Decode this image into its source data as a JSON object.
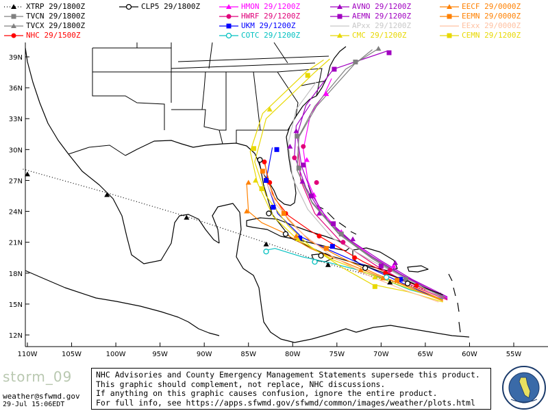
{
  "legend": [
    {
      "id": "xtrp",
      "label": "XTRP  29/1800Z",
      "color": "#000000",
      "marker": "triangle",
      "dash": true
    },
    {
      "id": "tvcn",
      "label": "TVCN  29/1800Z",
      "color": "#808080",
      "marker": "square"
    },
    {
      "id": "tvcx",
      "label": "TVCX  29/1800Z",
      "color": "#808080",
      "marker": "triangle"
    },
    {
      "id": "nhc",
      "label": "NHC  29/1500Z",
      "color": "#ff0000",
      "marker": "circle"
    },
    {
      "id": "clp5",
      "label": "CLP5  29/1800Z",
      "color": "#000000",
      "marker": "circle-open"
    },
    {
      "id": "hmon",
      "label": "HMON  29/1200Z",
      "color": "#ff00ff",
      "marker": "triangle"
    },
    {
      "id": "hwrf",
      "label": "HWRF  29/1200Z",
      "color": "#e0007a",
      "marker": "circle"
    },
    {
      "id": "ukm",
      "label": "UKM  29/1200Z",
      "color": "#0000ff",
      "marker": "square"
    },
    {
      "id": "cotc",
      "label": "COTC  29/1200Z",
      "color": "#00c0c0",
      "marker": "circle-open"
    },
    {
      "id": "avno",
      "label": "AVNO  29/1200Z",
      "color": "#a000c0",
      "marker": "triangle"
    },
    {
      "id": "aemn",
      "label": "AEMN  29/1200Z",
      "color": "#a000c0",
      "marker": "square"
    },
    {
      "id": "apxx",
      "label": "APxx  29/1200Z",
      "color": "#c8c8c8",
      "marker": "line"
    },
    {
      "id": "cmc",
      "label": "CMC  29/1200Z",
      "color": "#e8d800",
      "marker": "triangle"
    },
    {
      "id": "eecf",
      "label": "EECF  29/0000Z",
      "color": "#ff8000",
      "marker": "triangle"
    },
    {
      "id": "eemn",
      "label": "EEMN  29/0000Z",
      "color": "#ff8000",
      "marker": "square"
    },
    {
      "id": "eexx",
      "label": "EExx  29/0000Z",
      "color": "#ffc0a0",
      "marker": "line"
    },
    {
      "id": "cemn",
      "label": "CEMN  29/1200Z",
      "color": "#e8d800",
      "marker": "square"
    }
  ],
  "axes": {
    "lat_labels": [
      "39N",
      "36N",
      "33N",
      "30N",
      "27N",
      "24N",
      "21N",
      "18N",
      "15N",
      "12N"
    ],
    "lat_values": [
      39,
      36,
      33,
      30,
      27,
      24,
      21,
      18,
      15,
      12
    ],
    "lon_labels": [
      "110W",
      "105W",
      "100W",
      "95W",
      "90W",
      "85W",
      "80W",
      "75W",
      "70W",
      "65W",
      "60W",
      "55W"
    ],
    "lon_values": [
      -110,
      -105,
      -100,
      -95,
      -90,
      -85,
      -80,
      -75,
      -70,
      -65,
      -60,
      -55
    ]
  },
  "tracks": [
    {
      "id": "xtrp",
      "color": "#000000",
      "dash": true,
      "pts": [
        [
          -110.5,
          28.1
        ],
        [
          -101,
          25.8
        ],
        [
          -92,
          23.5
        ],
        [
          -83.5,
          21.1
        ],
        [
          -76,
          18.9
        ],
        [
          -69,
          17.2
        ],
        [
          -63,
          16
        ]
      ],
      "marks": [
        [
          -110,
          27.6
        ],
        [
          -101,
          25.6
        ],
        [
          -92,
          23.4
        ],
        [
          -83,
          20.8
        ],
        [
          -76,
          18.8
        ],
        [
          -69,
          17.1
        ]
      ]
    },
    {
      "id": "nhc",
      "color": "#ff0000",
      "pts": [
        [
          -62.5,
          15.5
        ],
        [
          -66,
          16.8
        ],
        [
          -69,
          17.9
        ],
        [
          -72,
          19.1
        ],
        [
          -75,
          20.6
        ],
        [
          -78,
          22.1
        ],
        [
          -80.5,
          23.6
        ],
        [
          -82,
          25.2
        ],
        [
          -82.8,
          27
        ],
        [
          -83.2,
          29
        ]
      ],
      "marks": [
        [
          -66,
          16.8
        ],
        [
          -69.5,
          18
        ],
        [
          -73,
          19.5
        ],
        [
          -77,
          21.6
        ],
        [
          -80.8,
          23.8
        ],
        [
          -82.6,
          26.8
        ],
        [
          -83.2,
          28.8
        ]
      ]
    },
    {
      "id": "hmon",
      "color": "#ff00ff",
      "pts": [
        [
          -62.5,
          15.6
        ],
        [
          -67,
          17.5
        ],
        [
          -71,
          19.6
        ],
        [
          -74.5,
          21.8
        ],
        [
          -77,
          24.3
        ],
        [
          -78.3,
          27
        ],
        [
          -78.8,
          30
        ],
        [
          -78,
          33.4
        ],
        [
          -76.4,
          35.4
        ],
        [
          -75.6,
          36.9
        ]
      ],
      "marks": [
        [
          -68.6,
          18.7
        ],
        [
          -74.5,
          22
        ],
        [
          -77.6,
          25.6
        ],
        [
          -78.4,
          29
        ],
        [
          -76.2,
          35.4
        ]
      ]
    },
    {
      "id": "hwrf",
      "color": "#e0007a",
      "pts": [
        [
          -62.5,
          15.4
        ],
        [
          -66.5,
          16.8
        ],
        [
          -70.5,
          18.7
        ],
        [
          -74.5,
          21
        ],
        [
          -77.5,
          23.8
        ],
        [
          -79.1,
          27
        ],
        [
          -79.4,
          30.3
        ]
      ],
      "marks": [
        [
          -69,
          18.3
        ],
        [
          -74.3,
          21
        ],
        [
          -77.3,
          26.8
        ],
        [
          -78.8,
          30.3
        ],
        [
          -79.8,
          29.2
        ]
      ]
    },
    {
      "id": "avno",
      "color": "#a000c0",
      "pts": [
        [
          -62.5,
          15.7
        ],
        [
          -66.5,
          17.4
        ],
        [
          -70,
          19.2
        ],
        [
          -73.5,
          21.2
        ],
        [
          -76.6,
          23.6
        ],
        [
          -78.5,
          26.3
        ],
        [
          -79.8,
          29.4
        ],
        [
          -79.6,
          32.3
        ],
        [
          -78,
          34.4
        ]
      ],
      "marks": [
        [
          -68.4,
          19
        ],
        [
          -73.2,
          21.3
        ],
        [
          -77,
          23.8
        ],
        [
          -78.9,
          26.9
        ],
        [
          -80.3,
          30.3
        ],
        [
          -79.6,
          31.8
        ]
      ]
    },
    {
      "id": "aemn",
      "color": "#a000c0",
      "pts": [
        [
          -62.5,
          15.5
        ],
        [
          -68,
          18
        ],
        [
          -72.5,
          20.4
        ],
        [
          -75.8,
          22.8
        ],
        [
          -77.8,
          25.6
        ],
        [
          -79,
          28.4
        ],
        [
          -79.5,
          31.4
        ],
        [
          -78.5,
          34.3
        ],
        [
          -75.4,
          37.8
        ],
        [
          -69.2,
          39.6
        ]
      ],
      "marks": [
        [
          -70,
          18.7
        ],
        [
          -75.4,
          22.8
        ],
        [
          -77.9,
          25.5
        ],
        [
          -78.8,
          28.5
        ],
        [
          -75.3,
          37.8
        ],
        [
          -69.1,
          39.4
        ]
      ]
    },
    {
      "id": "tvcn",
      "color": "#808080",
      "pts": [
        [
          -62.8,
          15.6
        ],
        [
          -67,
          17.3
        ],
        [
          -71,
          19.4
        ],
        [
          -74.8,
          21.8
        ],
        [
          -77.8,
          24.8
        ],
        [
          -79.5,
          28
        ],
        [
          -79.3,
          31.2
        ],
        [
          -77.3,
          34.2
        ],
        [
          -73,
          38.3
        ],
        [
          -71,
          39.7
        ]
      ],
      "marks": [
        [
          -67.2,
          17.4
        ],
        [
          -74.5,
          21.8
        ],
        [
          -79.3,
          28.2
        ],
        [
          -79.5,
          31.3
        ],
        [
          -72.9,
          38.5
        ]
      ]
    },
    {
      "id": "tvcx",
      "color": "#808080",
      "pts": [
        [
          -62.8,
          15.7
        ],
        [
          -67,
          17.4
        ],
        [
          -71,
          19.5
        ],
        [
          -74.8,
          21.9
        ],
        [
          -77.8,
          24.9
        ],
        [
          -79.5,
          28
        ],
        [
          -79.3,
          31.3
        ],
        [
          -77.5,
          34.2
        ],
        [
          -74,
          37.8
        ],
        [
          -70.3,
          39.8
        ]
      ],
      "marks": [
        [
          -70.3,
          39.8
        ]
      ]
    },
    {
      "id": "ukm",
      "color": "#0000ff",
      "pts": [
        [
          -63.5,
          15.5
        ],
        [
          -67.5,
          17
        ],
        [
          -71.5,
          18.6
        ],
        [
          -76,
          20.3
        ],
        [
          -79,
          21.5
        ],
        [
          -81.7,
          23.8
        ],
        [
          -83,
          27
        ],
        [
          -82.3,
          30.2
        ]
      ],
      "marks": [
        [
          -67.8,
          17.4
        ],
        [
          -75.5,
          20.6
        ],
        [
          -79.2,
          21.4
        ],
        [
          -82.2,
          24.4
        ],
        [
          -83,
          27
        ],
        [
          -81.8,
          30
        ]
      ]
    },
    {
      "id": "clp5",
      "color": "#000000",
      "pts": [
        [
          -63,
          15.9
        ],
        [
          -67,
          17.2
        ],
        [
          -71.5,
          18.6
        ],
        [
          -76.2,
          19.8
        ],
        [
          -80.2,
          21.4
        ],
        [
          -82.3,
          23.7
        ],
        [
          -83.3,
          26.6
        ],
        [
          -83.8,
          29
        ]
      ],
      "marks": [
        [
          -67,
          17
        ],
        [
          -71.8,
          18.5
        ],
        [
          -76.8,
          19.7
        ],
        [
          -80.8,
          21.8
        ],
        [
          -82.7,
          23.8
        ],
        [
          -83.7,
          29
        ]
      ]
    },
    {
      "id": "cotc",
      "color": "#00c0c0",
      "pts": [
        [
          -63,
          15.5
        ],
        [
          -66.8,
          16.4
        ],
        [
          -70.2,
          17.6
        ],
        [
          -73,
          18.4
        ],
        [
          -75.8,
          19
        ],
        [
          -79,
          19.6
        ],
        [
          -82,
          20.4
        ],
        [
          -83.2,
          20.2
        ]
      ],
      "marks": [
        [
          -69.4,
          17.6
        ],
        [
          -77.5,
          19.1
        ],
        [
          -83,
          20.1
        ]
      ]
    },
    {
      "id": "cmc",
      "color": "#e8d800",
      "pts": [
        [
          -63,
          15.4
        ],
        [
          -66.5,
          16.4
        ],
        [
          -71,
          17.8
        ],
        [
          -75.5,
          19.3
        ],
        [
          -79.5,
          21.3
        ],
        [
          -82.2,
          23.5
        ],
        [
          -84,
          26.8
        ],
        [
          -84.8,
          29.8
        ],
        [
          -83.4,
          33.5
        ],
        [
          -78.4,
          37.6
        ],
        [
          -76.5,
          38.7
        ]
      ],
      "marks": [
        [
          -70.7,
          17.6
        ],
        [
          -79.4,
          21.3
        ],
        [
          -84.2,
          27
        ],
        [
          -82.6,
          33.9
        ]
      ]
    },
    {
      "id": "eecf",
      "color": "#ff8000",
      "pts": [
        [
          -63,
          15.4
        ],
        [
          -66,
          16.5
        ],
        [
          -70,
          17.6
        ],
        [
          -74,
          19
        ],
        [
          -78,
          20.4
        ],
        [
          -81.2,
          22
        ],
        [
          -83.5,
          22.9
        ],
        [
          -85,
          24
        ],
        [
          -85.2,
          26.7
        ]
      ],
      "marks": [
        [
          -72.3,
          18.3
        ],
        [
          -79.6,
          21.6
        ],
        [
          -85.2,
          24
        ],
        [
          -85,
          26.8
        ],
        [
          -69.8,
          17.5
        ]
      ]
    },
    {
      "id": "eemn",
      "color": "#ff8000",
      "pts": [
        [
          -63,
          15.3
        ],
        [
          -66.5,
          16.5
        ],
        [
          -70.5,
          17.9
        ],
        [
          -74.5,
          19.5
        ],
        [
          -78,
          21.1
        ],
        [
          -80.5,
          23.2
        ],
        [
          -82.3,
          25.7
        ],
        [
          -83.2,
          28.7
        ]
      ],
      "marks": [
        [
          -68.2,
          17.3
        ],
        [
          -76.2,
          20.4
        ],
        [
          -81,
          23.8
        ],
        [
          -83.4,
          27.9
        ]
      ]
    },
    {
      "id": "cemn",
      "color": "#e8d800",
      "pts": [
        [
          -63,
          15.2
        ],
        [
          -67,
          16.2
        ],
        [
          -71,
          16.9
        ],
        [
          -74.5,
          18.6
        ],
        [
          -78,
          20.6
        ],
        [
          -80.5,
          22.6
        ],
        [
          -83,
          25.5
        ],
        [
          -84.3,
          28.8
        ],
        [
          -83,
          33
        ],
        [
          -77.5,
          37.5
        ],
        [
          -75.8,
          38.8
        ]
      ],
      "marks": [
        [
          -70.7,
          16.7
        ],
        [
          -83.5,
          26.2
        ],
        [
          -84.4,
          30.1
        ],
        [
          -78.3,
          37.2
        ]
      ]
    },
    {
      "id": "apxx",
      "color": "#c0c0c0",
      "pts": [
        [
          -63.5,
          15.8
        ],
        [
          -67.5,
          17.6
        ],
        [
          -71.5,
          19.4
        ],
        [
          -75.5,
          21.4
        ],
        [
          -78.3,
          24.2
        ],
        [
          -80,
          27.2
        ],
        [
          -80.5,
          30.6
        ],
        [
          -79.6,
          33.9
        ],
        [
          -77.3,
          36.6
        ]
      ],
      "marks": []
    },
    {
      "id": "eexx",
      "color": "#ffc0a0",
      "pts": [
        [
          -63.5,
          15.2
        ],
        [
          -67.5,
          16.4
        ],
        [
          -71.5,
          17.8
        ],
        [
          -75.5,
          19.6
        ],
        [
          -79,
          21.9
        ],
        [
          -82,
          24.8
        ],
        [
          -83.5,
          28
        ]
      ],
      "marks": []
    }
  ],
  "footer": {
    "storm": "storm_09",
    "email": "weather@sfwmd.gov",
    "date": "29-Jul 15:06EDT",
    "notice": [
      "NHC Advisories and County Emergency Management Statements supersede this product.",
      "This graphic should complement, not replace, NHC discussions.",
      "If anything on this graphic causes confusion, ignore the entire product.",
      "For full info, see  https://apps.sfwmd.gov/sfwmd/common/images/weather/plots.html"
    ],
    "seal_text": "SOUTH FLORIDA WATER MANAGEMENT DISTRICT"
  }
}
